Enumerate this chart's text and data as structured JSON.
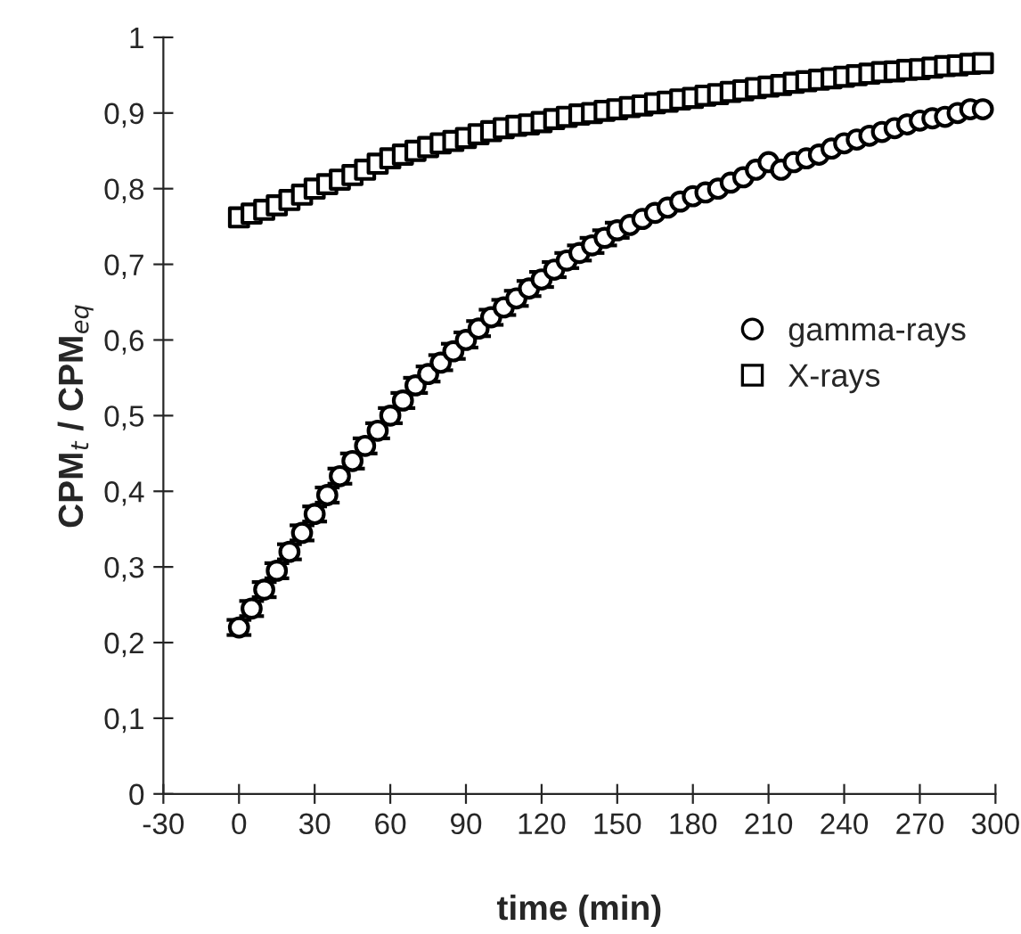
{
  "chart_data": {
    "type": "scatter",
    "xlabel": "time (min)",
    "ylabel": "CPM$_{t}$ / CPM$_{eq}$",
    "xlim": [
      -30,
      300
    ],
    "xticks": [
      -30,
      0,
      30,
      60,
      90,
      120,
      150,
      180,
      210,
      240,
      270,
      300
    ],
    "ylim": [
      0,
      1
    ],
    "yticks": [
      0,
      {
        "value": 0.1,
        "label": "0,1"
      },
      {
        "value": 0.2,
        "label": "0,2"
      },
      {
        "value": 0.3,
        "label": "0,3"
      },
      {
        "value": 0.4,
        "label": "0,4"
      },
      {
        "value": 0.5,
        "label": "0,5"
      },
      {
        "value": 0.6,
        "label": "0,6"
      },
      {
        "value": 0.7,
        "label": "0,7"
      },
      {
        "value": 0.8,
        "label": "0,8"
      },
      {
        "value": 0.9,
        "label": "0,9"
      },
      1
    ],
    "grid": false,
    "legend": "right",
    "series": [
      {
        "name": "gamma-rays",
        "color": "#000000",
        "marker": "circle",
        "x": [
          0,
          5,
          10,
          15,
          20,
          25,
          30,
          35,
          40,
          45,
          50,
          55,
          60,
          65,
          70,
          75,
          80,
          85,
          90,
          95,
          100,
          105,
          110,
          115,
          120,
          125,
          130,
          135,
          140,
          145,
          150,
          155,
          160,
          165,
          170,
          175,
          180,
          185,
          190,
          195,
          200,
          205,
          210,
          215,
          220,
          225,
          230,
          235,
          240,
          245,
          250,
          255,
          260,
          265,
          270,
          275,
          280,
          285,
          290,
          295
        ],
        "values": [
          0.22,
          0.245,
          0.27,
          0.295,
          0.32,
          0.345,
          0.37,
          0.395,
          0.42,
          0.44,
          0.46,
          0.48,
          0.5,
          0.52,
          0.54,
          0.555,
          0.57,
          0.585,
          0.6,
          0.615,
          0.63,
          0.643,
          0.655,
          0.668,
          0.68,
          0.693,
          0.705,
          0.715,
          0.725,
          0.735,
          0.745,
          0.752,
          0.76,
          0.768,
          0.775,
          0.783,
          0.79,
          0.795,
          0.8,
          0.808,
          0.815,
          0.825,
          0.835,
          0.825,
          0.835,
          0.84,
          0.845,
          0.853,
          0.86,
          0.865,
          0.87,
          0.875,
          0.88,
          0.885,
          0.89,
          0.893,
          0.895,
          0.9,
          0.905,
          0.905
        ],
        "errors": [
          0.01,
          0.01,
          0.01,
          0.01,
          0.01,
          0.01,
          0.01,
          0.01,
          0.01,
          0.01,
          0.01,
          0.01,
          0.01,
          0.01,
          0.01,
          0.01,
          0.01,
          0.01,
          0.01,
          0.01,
          0.01,
          0.01,
          0.01,
          0.01,
          0.01,
          0.01,
          0.01,
          0.01,
          0.01,
          0.01,
          0.01,
          null,
          null,
          null,
          null,
          null,
          null,
          null,
          null,
          null,
          null,
          null,
          null,
          null,
          null,
          null,
          null,
          null,
          null,
          null,
          null,
          null,
          null,
          null,
          null,
          null,
          null,
          null,
          null,
          null
        ]
      },
      {
        "name": "X-rays",
        "color": "#000000",
        "marker": "square",
        "x": [
          0,
          5,
          10,
          15,
          20,
          25,
          30,
          35,
          40,
          45,
          50,
          55,
          60,
          65,
          70,
          75,
          80,
          85,
          90,
          95,
          100,
          105,
          110,
          115,
          120,
          125,
          130,
          135,
          140,
          145,
          150,
          155,
          160,
          165,
          170,
          175,
          180,
          185,
          190,
          195,
          200,
          205,
          210,
          215,
          220,
          225,
          230,
          235,
          240,
          245,
          250,
          255,
          260,
          265,
          270,
          275,
          280,
          285,
          290,
          295
        ],
        "values": [
          0.762,
          0.767,
          0.772,
          0.778,
          0.785,
          0.792,
          0.8,
          0.806,
          0.812,
          0.818,
          0.825,
          0.833,
          0.84,
          0.845,
          0.85,
          0.855,
          0.86,
          0.863,
          0.867,
          0.872,
          0.876,
          0.88,
          0.883,
          0.885,
          0.888,
          0.892,
          0.895,
          0.898,
          0.9,
          0.903,
          0.905,
          0.908,
          0.91,
          0.913,
          0.915,
          0.918,
          0.92,
          0.923,
          0.925,
          0.928,
          0.93,
          0.933,
          0.935,
          0.937,
          0.94,
          0.942,
          0.944,
          0.946,
          0.948,
          0.95,
          0.952,
          0.954,
          0.955,
          0.957,
          0.958,
          0.96,
          0.962,
          0.963,
          0.965,
          0.966
        ]
      }
    ]
  }
}
